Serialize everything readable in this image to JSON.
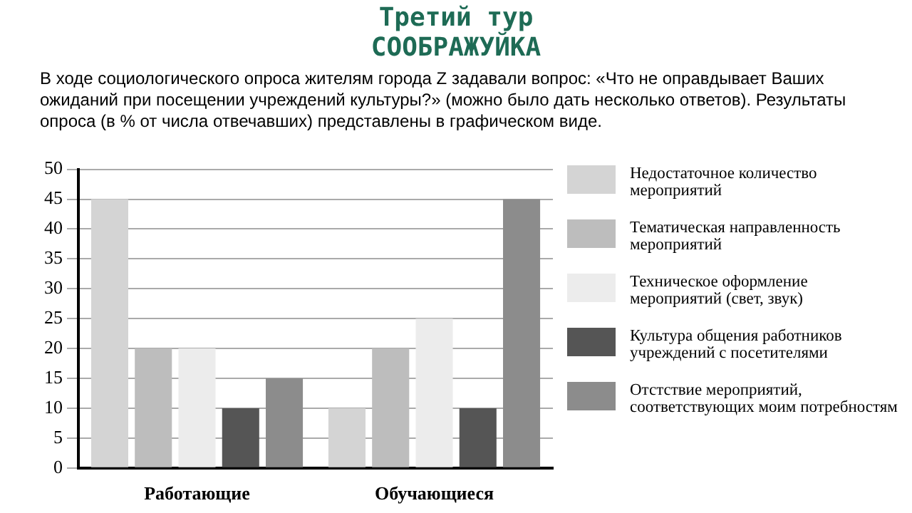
{
  "chart_data": {
    "type": "bar",
    "title": "Третий тур СООБРАЖУЙКА",
    "subtitle": "В ходе социологического опроса жителям города Z задавали вопрос: «Что не оправдывает Ваших ожиданий при посещении учреждений культуры?» (можно было дать несколько ответов). Результаты опроса (в % от числа отвечавших) представлены в графическом виде.",
    "categories": [
      "Работающие",
      "Обучающиеся"
    ],
    "series": [
      {
        "name": "Недостаточное количество мероприятий",
        "color": "#d4d4d4",
        "values": [
          45,
          10
        ]
      },
      {
        "name": "Тематическая направленность мероприятий",
        "color": "#bdbdbd",
        "values": [
          20,
          20
        ]
      },
      {
        "name": "Техническое оформление мероприятий (свет, звук)",
        "color": "#ececec",
        "values": [
          20,
          25
        ]
      },
      {
        "name": "Культура общения работников учреждений с посетителями",
        "color": "#555555",
        "values": [
          10,
          10
        ]
      },
      {
        "name": "Отстствие мероприятий, соответствующих моим потребностям",
        "color": "#8c8c8c",
        "values": [
          15,
          45
        ]
      }
    ],
    "ylim": [
      0,
      50
    ],
    "yticks": [
      0,
      5,
      10,
      15,
      20,
      25,
      30,
      35,
      40,
      45,
      50
    ],
    "grid": "y",
    "legend": "right"
  }
}
